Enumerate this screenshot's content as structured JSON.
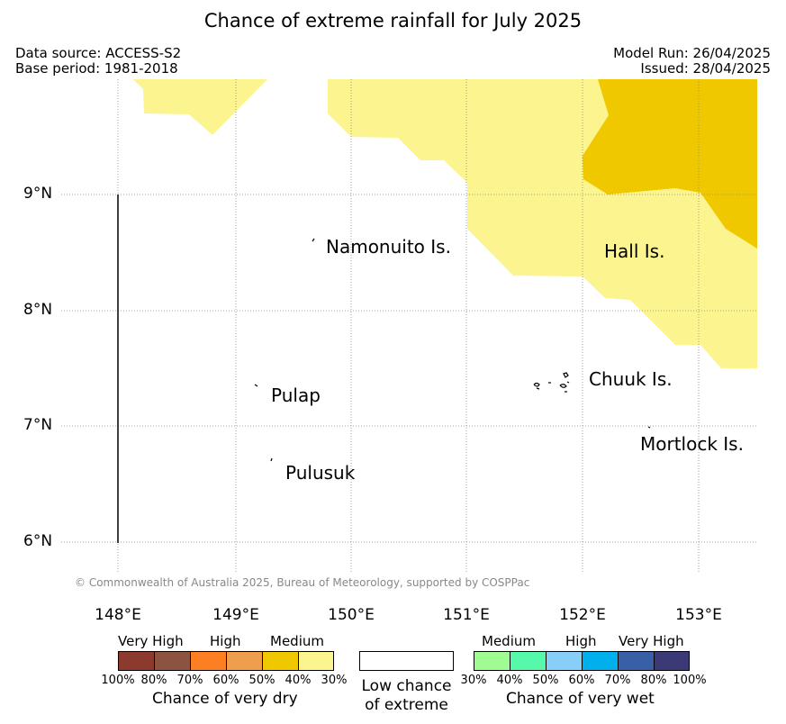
{
  "title": "Chance of extreme rainfall for July 2025",
  "header": {
    "data_source": "Data source: ACCESS-S2",
    "base_period": "Base period: 1981-2018",
    "model_run": "Model Run: 26/04/2025",
    "issued": "Issued: 28/04/2025"
  },
  "map": {
    "lat_labels": [
      "9°N",
      "8°N",
      "7°N",
      "6°N"
    ],
    "lon_labels": [
      "148°E",
      "149°E",
      "150°E",
      "151°E",
      "152°E",
      "153°E"
    ],
    "places": {
      "namonuito": "Namonuito Is.",
      "hall": "Hall Is.",
      "pulap": "Pulap",
      "chuuk": "Chuuk Is.",
      "mortlock": "Mortlock Is.",
      "pulusuk": "Pulusuk"
    },
    "copyright": "© Commonwealth of Australia 2025, Bureau of Meteorology, supported by COSPPac",
    "region_colors": {
      "dry_medium_light": "#fcf48e",
      "dry_medium_dark": "#efc800"
    }
  },
  "legend": {
    "dry": {
      "levels": [
        "Very High",
        "High",
        "Medium"
      ],
      "colors": [
        "#8c3a2e",
        "#8c5340",
        "#fd7f23",
        "#ee9e4c",
        "#efc800",
        "#fcf48e"
      ],
      "ticks": [
        "100%",
        "80%",
        "70%",
        "60%",
        "50%",
        "40%",
        "30%"
      ],
      "caption": "Chance of very dry"
    },
    "low": {
      "caption_line1": "Low chance",
      "caption_line2": "of extreme"
    },
    "wet": {
      "levels": [
        "Medium",
        "High",
        "Very High"
      ],
      "colors": [
        "#a0fb93",
        "#55f9a9",
        "#87cef8",
        "#00b0ed",
        "#3760a6",
        "#3b3a77"
      ],
      "ticks": [
        "30%",
        "40%",
        "50%",
        "60%",
        "70%",
        "80%",
        "100%"
      ],
      "caption": "Chance of very wet"
    }
  }
}
